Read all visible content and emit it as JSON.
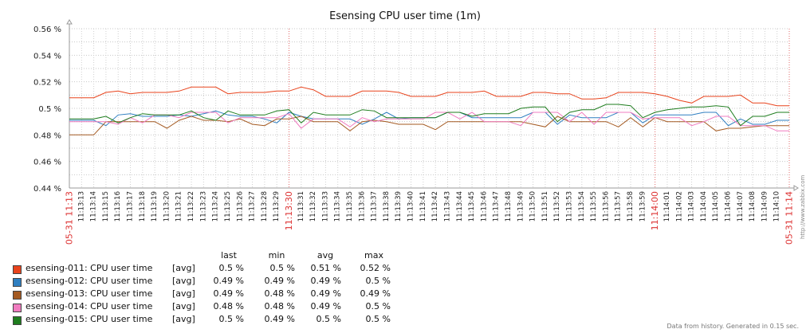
{
  "chart_data": {
    "type": "line",
    "title": "Esensing CPU user time (1m)",
    "y_ticks": [
      "0.56 %",
      "0.54 %",
      "0.52 %",
      "0.5 %",
      "0.48 %",
      "0.46 %",
      "0.44 %"
    ],
    "ylim": [
      0.44,
      0.56
    ],
    "grid": true,
    "x": [
      "05-31 11:13",
      "11:13:13",
      "11:13:14",
      "11:13:15",
      "11:13:16",
      "11:13:17",
      "11:13:18",
      "11:13:19",
      "11:13:20",
      "11:13:21",
      "11:13:22",
      "11:13:23",
      "11:13:24",
      "11:13:25",
      "11:13:26",
      "11:13:27",
      "11:13:28",
      "11:13:29",
      "11:13:30",
      "11:13:31",
      "11:13:32",
      "11:13:33",
      "11:13:34",
      "11:13:35",
      "11:13:36",
      "11:13:37",
      "11:13:38",
      "11:13:39",
      "11:13:40",
      "11:13:41",
      "11:13:42",
      "11:13:43",
      "11:13:44",
      "11:13:45",
      "11:13:46",
      "11:13:47",
      "11:13:48",
      "11:13:49",
      "11:13:50",
      "11:13:51",
      "11:13:52",
      "11:13:53",
      "11:13:54",
      "11:13:55",
      "11:13:56",
      "11:13:57",
      "11:13:58",
      "11:13:59",
      "11:14:00",
      "11:14:01",
      "11:14:02",
      "11:14:03",
      "11:14:04",
      "11:14:05",
      "11:14:06",
      "11:14:07",
      "11:14:08",
      "11:14:09",
      "11:14:10",
      "05-31 11:14"
    ],
    "x_highlight": [
      "05-31 11:13",
      "11:13:30",
      "11:14:00",
      "05-31 11:14"
    ],
    "legend_headers": {
      "last": "last",
      "min": "min",
      "avg": "avg",
      "max": "max"
    },
    "series": [
      {
        "name": "esensing-011: CPU user time",
        "func": "[avg]",
        "color": "#e8431c",
        "last": "0.5 %",
        "min": "0.5 %",
        "avg": "0.51 %",
        "max": "0.52 %",
        "values": [
          0.508,
          0.508,
          0.508,
          0.512,
          0.513,
          0.511,
          0.512,
          0.512,
          0.512,
          0.513,
          0.516,
          0.516,
          0.516,
          0.511,
          0.512,
          0.512,
          0.512,
          0.513,
          0.513,
          0.516,
          0.514,
          0.509,
          0.509,
          0.509,
          0.513,
          0.513,
          0.513,
          0.512,
          0.509,
          0.509,
          0.509,
          0.512,
          0.512,
          0.512,
          0.513,
          0.509,
          0.509,
          0.509,
          0.512,
          0.512,
          0.511,
          0.511,
          0.507,
          0.507,
          0.508,
          0.512,
          0.512,
          0.512,
          0.511,
          0.509,
          0.506,
          0.504,
          0.509,
          0.509,
          0.509,
          0.51,
          0.504,
          0.504,
          0.502,
          0.502
        ]
      },
      {
        "name": "esensing-012: CPU user time",
        "func": "[avg]",
        "color": "#2f7fc1",
        "last": "0.49 %",
        "min": "0.49 %",
        "avg": "0.49 %",
        "max": "0.5 %",
        "values": [
          0.491,
          0.491,
          0.491,
          0.487,
          0.495,
          0.496,
          0.494,
          0.494,
          0.494,
          0.495,
          0.494,
          0.496,
          0.498,
          0.495,
          0.494,
          0.494,
          0.492,
          0.489,
          0.497,
          0.494,
          0.492,
          0.492,
          0.492,
          0.492,
          0.488,
          0.492,
          0.497,
          0.492,
          0.493,
          0.493,
          0.493,
          0.497,
          0.497,
          0.493,
          0.493,
          0.493,
          0.493,
          0.493,
          0.497,
          0.497,
          0.488,
          0.495,
          0.493,
          0.493,
          0.493,
          0.497,
          0.497,
          0.489,
          0.495,
          0.495,
          0.495,
          0.495,
          0.497,
          0.497,
          0.487,
          0.492,
          0.488,
          0.488,
          0.491,
          0.491
        ]
      },
      {
        "name": "esensing-013: CPU user time",
        "func": "[avg]",
        "color": "#a45a22",
        "last": "0.49 %",
        "min": "0.48 %",
        "avg": "0.49 %",
        "max": "0.49 %",
        "values": [
          0.48,
          0.48,
          0.48,
          0.49,
          0.49,
          0.49,
          0.49,
          0.49,
          0.485,
          0.491,
          0.494,
          0.491,
          0.491,
          0.49,
          0.492,
          0.488,
          0.487,
          0.492,
          0.492,
          0.494,
          0.49,
          0.49,
          0.49,
          0.483,
          0.49,
          0.491,
          0.49,
          0.488,
          0.488,
          0.488,
          0.484,
          0.49,
          0.49,
          0.49,
          0.49,
          0.49,
          0.49,
          0.49,
          0.488,
          0.486,
          0.494,
          0.49,
          0.49,
          0.49,
          0.49,
          0.486,
          0.493,
          0.486,
          0.493,
          0.49,
          0.49,
          0.49,
          0.49,
          0.483,
          0.485,
          0.485,
          0.486,
          0.487,
          0.487,
          0.487
        ]
      },
      {
        "name": "esensing-014: CPU user time",
        "func": "[avg]",
        "color": "#f07cc0",
        "last": "0.48 %",
        "min": "0.48 %",
        "avg": "0.49 %",
        "max": "0.5 %",
        "values": [
          0.49,
          0.49,
          0.49,
          0.49,
          0.488,
          0.493,
          0.489,
          0.495,
          0.495,
          0.493,
          0.497,
          0.497,
          0.497,
          0.489,
          0.493,
          0.493,
          0.493,
          0.493,
          0.496,
          0.485,
          0.492,
          0.492,
          0.492,
          0.486,
          0.493,
          0.49,
          0.492,
          0.492,
          0.492,
          0.492,
          0.497,
          0.497,
          0.492,
          0.497,
          0.49,
          0.49,
          0.49,
          0.487,
          0.497,
          0.497,
          0.497,
          0.49,
          0.497,
          0.488,
          0.497,
          0.497,
          0.497,
          0.492,
          0.493,
          0.493,
          0.493,
          0.487,
          0.49,
          0.494,
          0.494,
          0.487,
          0.487,
          0.487,
          0.483,
          0.483
        ]
      },
      {
        "name": "esensing-015: CPU user time",
        "func": "[avg]",
        "color": "#1e7d1e",
        "last": "0.5 %",
        "min": "0.49 %",
        "avg": "0.5 %",
        "max": "0.5 %",
        "values": [
          0.492,
          0.492,
          0.492,
          0.494,
          0.489,
          0.493,
          0.496,
          0.495,
          0.495,
          0.495,
          0.498,
          0.493,
          0.491,
          0.498,
          0.495,
          0.495,
          0.495,
          0.498,
          0.499,
          0.489,
          0.497,
          0.495,
          0.495,
          0.495,
          0.499,
          0.498,
          0.493,
          0.493,
          0.493,
          0.493,
          0.493,
          0.497,
          0.497,
          0.494,
          0.496,
          0.496,
          0.496,
          0.5,
          0.501,
          0.501,
          0.49,
          0.497,
          0.499,
          0.499,
          0.503,
          0.503,
          0.502,
          0.493,
          0.497,
          0.499,
          0.5,
          0.501,
          0.501,
          0.502,
          0.501,
          0.487,
          0.494,
          0.494,
          0.497,
          0.497
        ]
      }
    ]
  },
  "watermark": "http://www.zabbix.com",
  "footer": "Data from history. Generated in 0.15 sec."
}
